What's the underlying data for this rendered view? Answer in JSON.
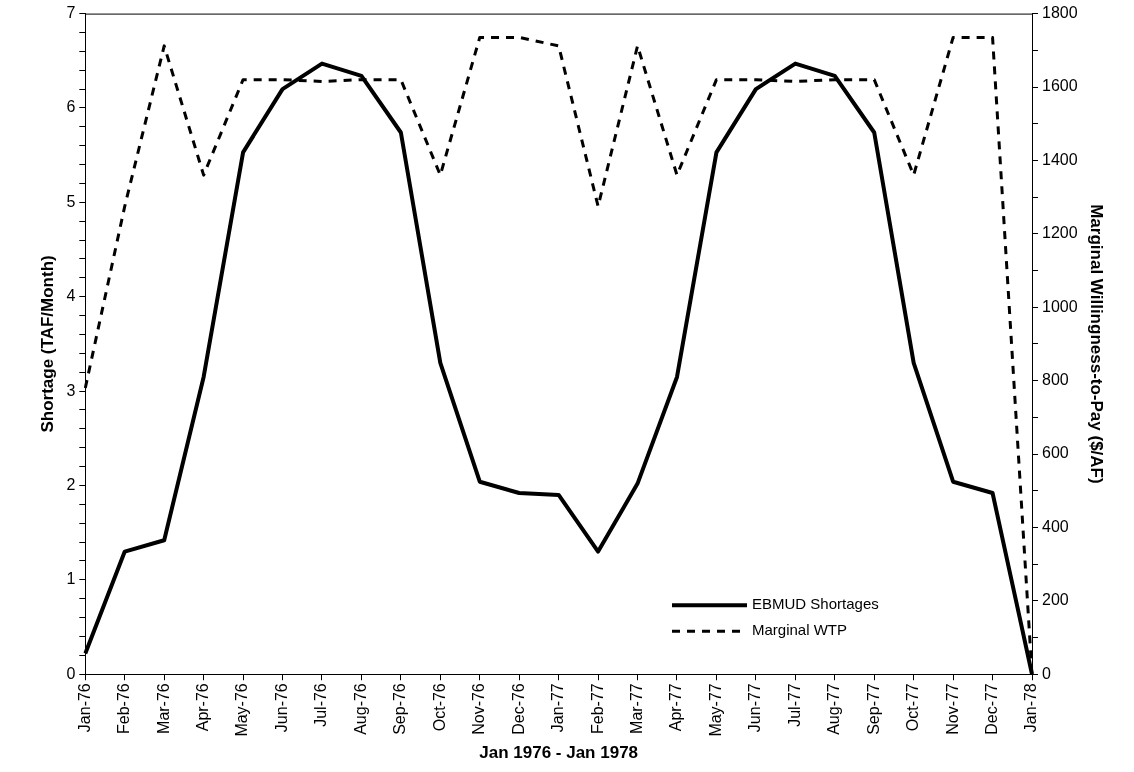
{
  "chart_data": {
    "type": "line",
    "xlabel": "Jan 1976 - Jan 1978",
    "ylabel": "Shortage (TAF/Month)",
    "y2label": "Marginal Willingness-to-Pay ($/AF)",
    "categories": [
      "Jan-76",
      "Feb-76",
      "Mar-76",
      "Apr-76",
      "May-76",
      "Jun-76",
      "Jul-76",
      "Aug-76",
      "Sep-76",
      "Oct-76",
      "Nov-76",
      "Dec-76",
      "Jan-77",
      "Feb-77",
      "Mar-77",
      "Apr-77",
      "May-77",
      "Jun-77",
      "Jul-77",
      "Aug-77",
      "Sep-77",
      "Oct-77",
      "Nov-77",
      "Dec-77",
      "Jan-78"
    ],
    "series": [
      {
        "name": "EBMUD Shortages",
        "color": "#000000",
        "line_style": "solid",
        "values": [
          0.22,
          1.3,
          1.42,
          3.15,
          5.53,
          6.2,
          6.47,
          6.34,
          5.74,
          3.3,
          2.04,
          1.92,
          1.9,
          1.3,
          2.02,
          3.15,
          5.53,
          6.2,
          6.47,
          6.34,
          5.74,
          3.3,
          2.04,
          1.92,
          0.0
        ]
      },
      {
        "name": "Marginal WTP",
        "color": "#000000",
        "line_style": "dashed",
        "axis": "y2",
        "values": [
          780,
          1275,
          1712,
          1360,
          1620,
          1620,
          1615,
          1620,
          1620,
          1360,
          1735,
          1735,
          1712,
          1275,
          1712,
          1360,
          1620,
          1620,
          1615,
          1620,
          1620,
          1360,
          1735,
          1735,
          0
        ]
      }
    ],
    "ylim": [
      0,
      7
    ],
    "yticks": [
      0,
      {
        "value": 0.2,
        "label": null
      },
      {
        "value": 0.4,
        "label": null
      },
      {
        "value": 0.6,
        "label": null
      },
      {
        "value": 0.8,
        "label": null
      },
      1,
      {
        "value": 1.2,
        "label": null
      },
      {
        "value": 1.4,
        "label": null
      },
      {
        "value": 1.6,
        "label": null
      },
      {
        "value": 1.8,
        "label": null
      },
      2,
      {
        "value": 2.2,
        "label": null
      },
      {
        "value": 2.4,
        "label": null
      },
      {
        "value": 2.6,
        "label": null
      },
      {
        "value": 2.8,
        "label": null
      },
      3,
      {
        "value": 3.2,
        "label": null
      },
      {
        "value": 3.4,
        "label": null
      },
      {
        "value": 3.6,
        "label": null
      },
      {
        "value": 3.8,
        "label": null
      },
      4,
      {
        "value": 4.2,
        "label": null
      },
      {
        "value": 4.4,
        "label": null
      },
      {
        "value": 4.6,
        "label": null
      },
      {
        "value": 4.8,
        "label": null
      },
      5,
      {
        "value": 5.2,
        "label": null
      },
      {
        "value": 5.4,
        "label": null
      },
      {
        "value": 5.6,
        "label": null
      },
      {
        "value": 5.8,
        "label": null
      },
      6,
      {
        "value": 6.2,
        "label": null
      },
      {
        "value": 6.4,
        "label": null
      },
      {
        "value": 6.6,
        "label": null
      },
      {
        "value": 6.8,
        "label": null
      },
      7
    ],
    "y2lim": [
      0,
      1800
    ],
    "y2ticks": [
      0,
      {
        "value": 100,
        "label": null
      },
      200,
      {
        "value": 300,
        "label": null
      },
      400,
      {
        "value": 500,
        "label": null
      },
      600,
      {
        "value": 700,
        "label": null
      },
      800,
      {
        "value": 900,
        "label": null
      },
      1000,
      {
        "value": 1100,
        "label": null
      },
      1200,
      {
        "value": 1300,
        "label": null
      },
      1400,
      {
        "value": 1500,
        "label": null
      },
      1600,
      {
        "value": 1700,
        "label": null
      },
      1800
    ],
    "grid": false,
    "legend": "bottom right",
    "marker": "none"
  }
}
